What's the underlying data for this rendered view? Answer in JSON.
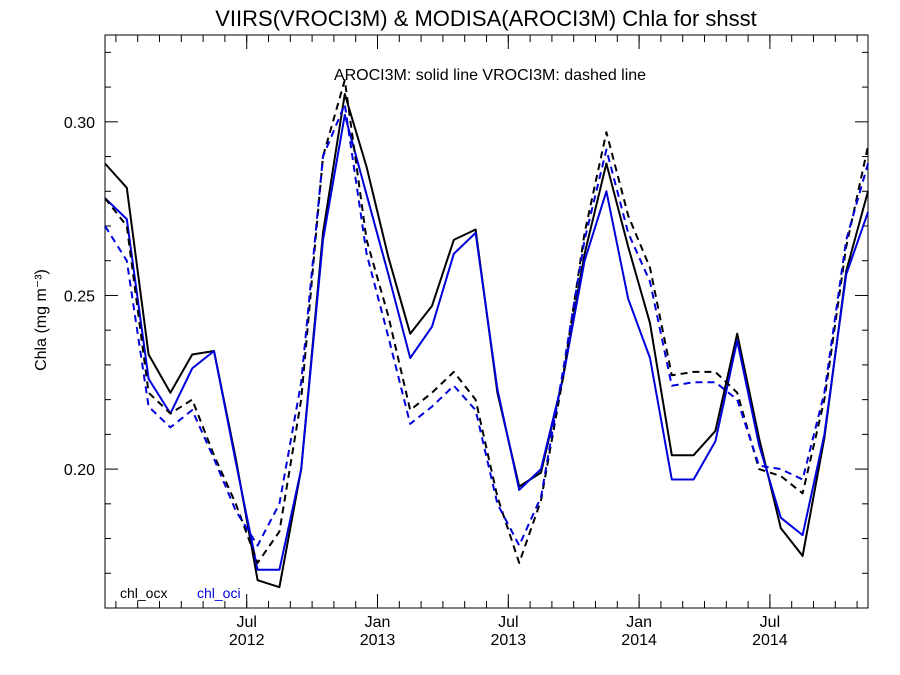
{
  "chart_data": {
    "type": "line",
    "title": "VIIRS(VROCI3M) & MODISA(AROCI3M)  Chla for shsst",
    "subtitle": "AROCI3M: solid line   VROCI3M: dashed line",
    "ylabel": "Chla (mg m⁻³)",
    "xlabel": "",
    "ylim": [
      0.16,
      0.325
    ],
    "xlim": [
      0,
      35
    ],
    "y_ticks": [
      "0.20",
      "0.25",
      "0.30"
    ],
    "y_tick_values": [
      0.2,
      0.25,
      0.3
    ],
    "x_ticks": [
      {
        "month": "Jul",
        "year": "2012",
        "x": 6.5
      },
      {
        "month": "Jan",
        "year": "2013",
        "x": 12.5
      },
      {
        "month": "Jul",
        "year": "2013",
        "x": 18.5
      },
      {
        "month": "Jan",
        "year": "2014",
        "x": 24.5
      },
      {
        "month": "Jul",
        "year": "2014",
        "x": 30.5
      }
    ],
    "colors": {
      "chl_ocx": "#000000",
      "chl_oci": "#0000dd"
    },
    "x": [
      0,
      1,
      2,
      3,
      4,
      5,
      6,
      7,
      8,
      9,
      10,
      11,
      12,
      13,
      14,
      15,
      16,
      17,
      18,
      19,
      20,
      21,
      22,
      23,
      24,
      25,
      26,
      27,
      28,
      29,
      30,
      31,
      32,
      33,
      34,
      35
    ],
    "series": [
      {
        "name": "chl_ocx",
        "sensor": "AROCI3M",
        "style": "solid",
        "values": [
          0.288,
          0.281,
          0.233,
          0.222,
          0.233,
          0.234,
          0.203,
          0.168,
          0.166,
          0.2,
          0.268,
          0.308,
          0.287,
          0.261,
          0.239,
          0.247,
          0.266,
          0.269,
          0.222,
          0.195,
          0.199,
          0.226,
          0.262,
          0.288,
          0.264,
          0.242,
          0.204,
          0.204,
          0.211,
          0.239,
          0.209,
          0.183,
          0.175,
          0.209,
          0.257,
          0.28
        ]
      },
      {
        "name": "chl_oci",
        "sensor": "AROCI3M",
        "style": "solid",
        "values": [
          0.278,
          0.272,
          0.226,
          0.216,
          0.229,
          0.234,
          0.202,
          0.171,
          0.171,
          0.2,
          0.266,
          0.302,
          0.279,
          0.256,
          0.232,
          0.241,
          0.262,
          0.268,
          0.223,
          0.194,
          0.2,
          0.226,
          0.26,
          0.28,
          0.249,
          0.232,
          0.197,
          0.197,
          0.208,
          0.237,
          0.207,
          0.186,
          0.181,
          0.21,
          0.256,
          0.274
        ]
      },
      {
        "name": "chl_ocx",
        "sensor": "VROCI3M",
        "style": "dashed",
        "values": [
          0.278,
          0.27,
          0.222,
          0.216,
          0.22,
          0.204,
          0.19,
          0.173,
          0.182,
          0.22,
          0.29,
          0.312,
          0.266,
          0.244,
          0.217,
          0.222,
          0.228,
          0.22,
          0.192,
          0.173,
          0.191,
          0.226,
          0.268,
          0.297,
          0.273,
          0.258,
          0.227,
          0.228,
          0.228,
          0.222,
          0.2,
          0.198,
          0.193,
          0.22,
          0.264,
          0.293
        ]
      },
      {
        "name": "chl_oci",
        "sensor": "VROCI3M",
        "style": "dashed",
        "values": [
          0.27,
          0.26,
          0.218,
          0.212,
          0.217,
          0.203,
          0.188,
          0.178,
          0.19,
          0.225,
          0.29,
          0.305,
          0.262,
          0.238,
          0.213,
          0.218,
          0.224,
          0.217,
          0.19,
          0.178,
          0.192,
          0.228,
          0.266,
          0.292,
          0.268,
          0.254,
          0.224,
          0.225,
          0.225,
          0.22,
          0.201,
          0.2,
          0.197,
          0.222,
          0.266,
          0.288
        ]
      }
    ],
    "legend": [
      {
        "label": "chl_ocx",
        "color": "#000000"
      },
      {
        "label": "chl_oci",
        "color": "#0000dd"
      }
    ],
    "legend_position": "bottom-left",
    "grid": false
  }
}
